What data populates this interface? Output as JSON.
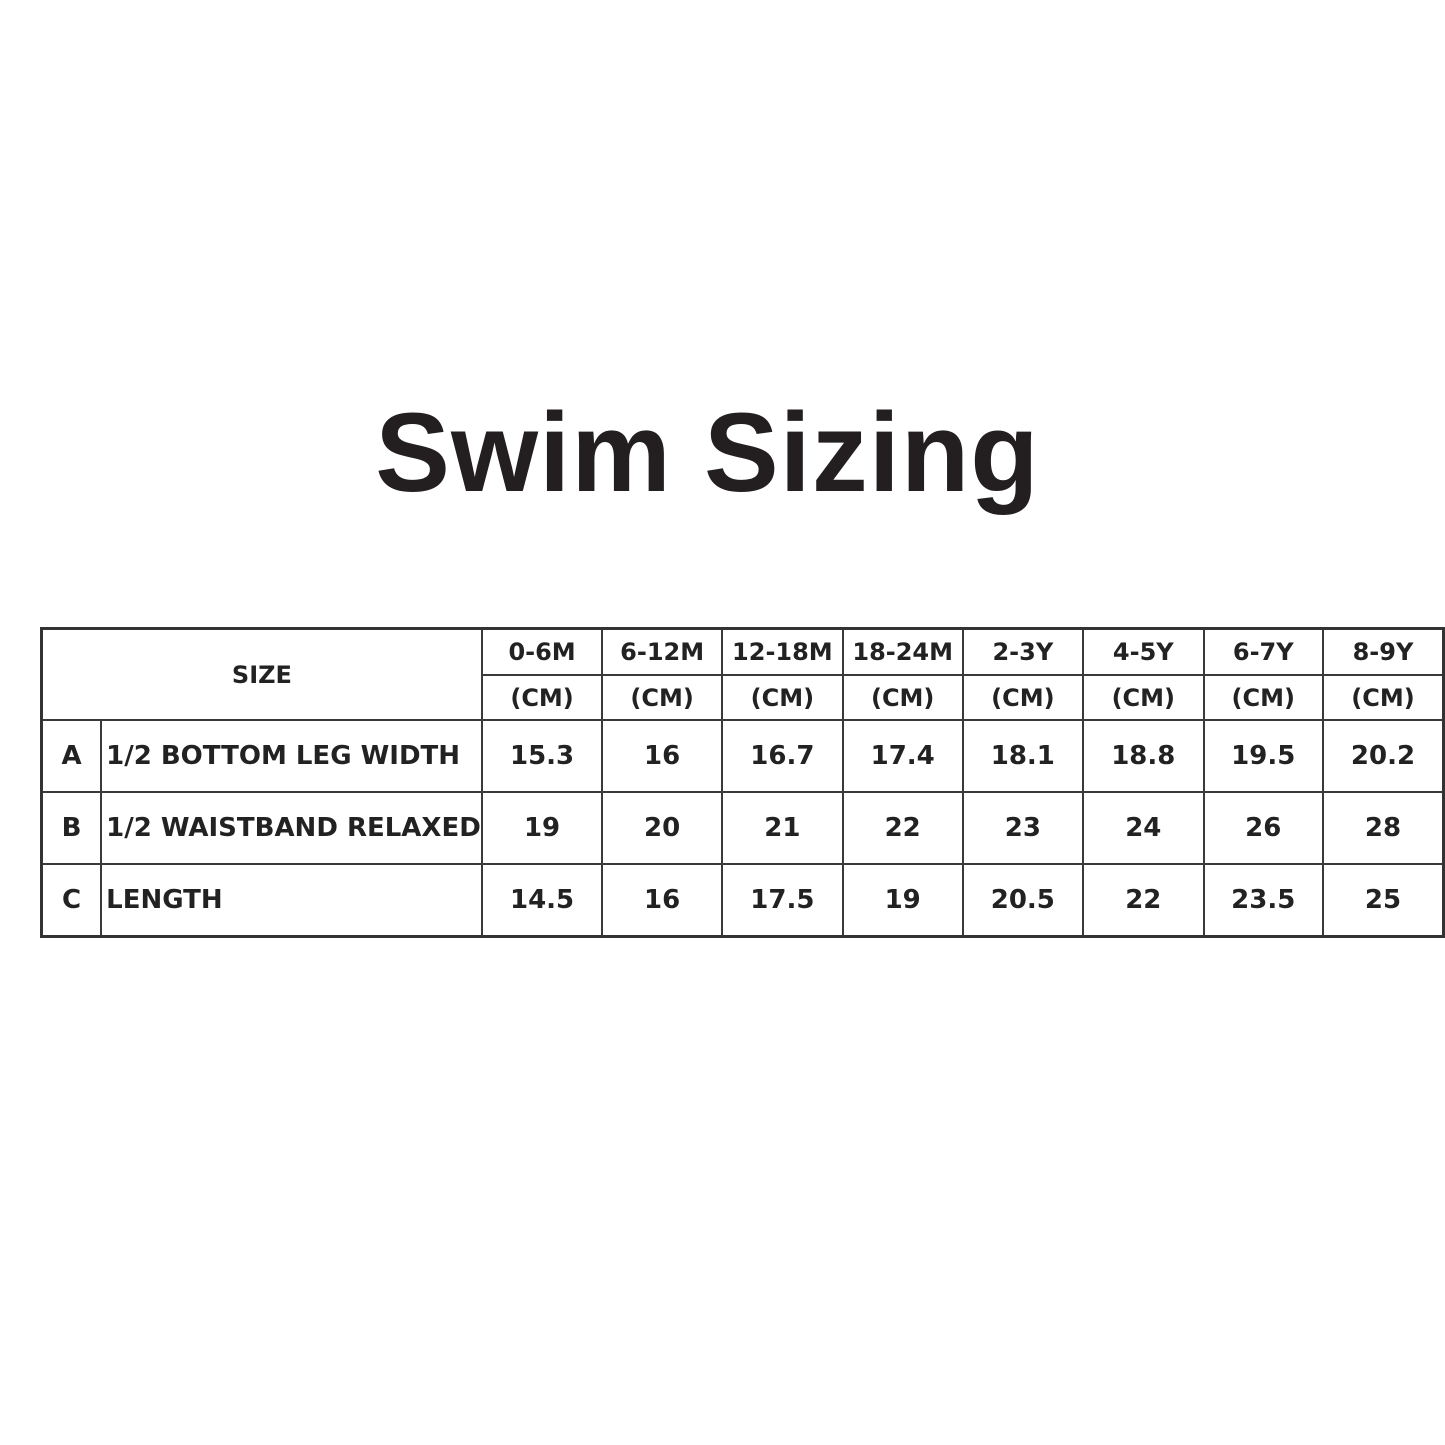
{
  "title": "Swim Sizing",
  "table": {
    "size_label": "SIZE",
    "unit": "(CM)",
    "sizes": [
      "0-6M",
      "6-12M",
      "12-18M",
      "18-24M",
      "2-3Y",
      "4-5Y",
      "6-7Y",
      "8-9Y"
    ],
    "rows": [
      {
        "letter": "A",
        "label": "1/2 BOTTOM LEG WIDTH",
        "values": [
          "15.3",
          "16",
          "16.7",
          "17.4",
          "18.1",
          "18.8",
          "19.5",
          "20.2"
        ]
      },
      {
        "letter": "B",
        "label": "1/2 WAISTBAND RELAXED",
        "values": [
          "19",
          "20",
          "21",
          "22",
          "23",
          "24",
          "26",
          "28"
        ]
      },
      {
        "letter": "C",
        "label": "LENGTH",
        "values": [
          "14.5",
          "16",
          "17.5",
          "19",
          "20.5",
          "22",
          "23.5",
          "25"
        ]
      }
    ]
  }
}
